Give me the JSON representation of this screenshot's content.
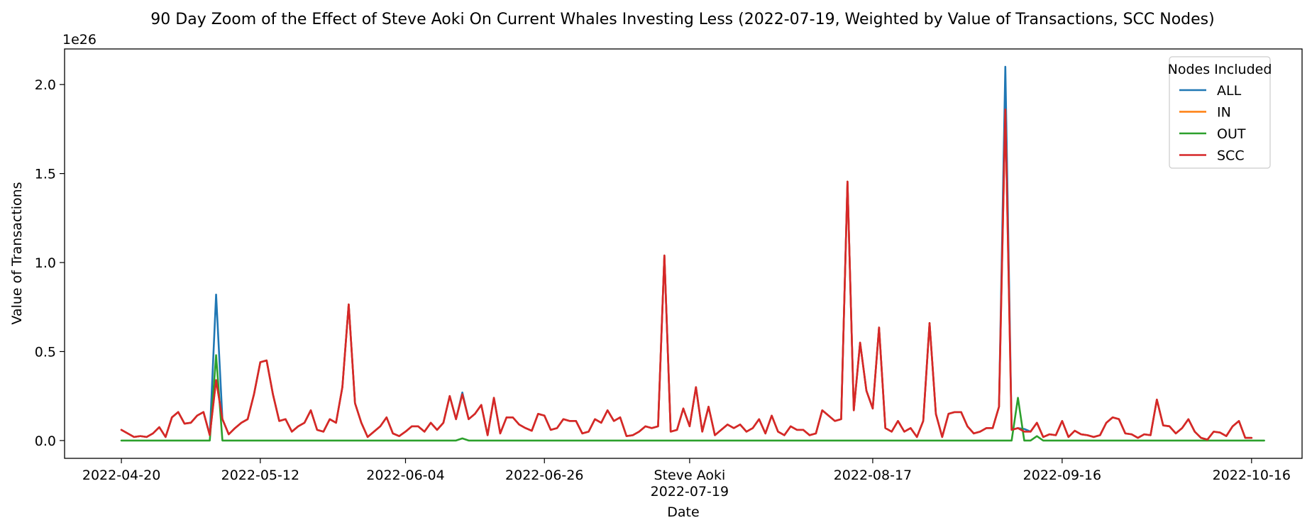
{
  "chart_data": {
    "type": "line",
    "title": "90 Day Zoom of the Effect of Steve Aoki On Current Whales Investing Less (2022-07-19, Weighted by Value of Transactions, SCC Nodes)",
    "xlabel": "Date",
    "ylabel": "Value of Transactions",
    "y_offset_label": "1e26",
    "x_start": "2022-04-20",
    "x_end": "2022-10-16",
    "xlim": [
      "2022-04-11",
      "2022-10-24"
    ],
    "ylim": [
      -0.1,
      2.2
    ],
    "x_ticks": [
      {
        "date": "2022-04-20",
        "label": "2022-04-20"
      },
      {
        "date": "2022-05-12",
        "label": "2022-05-12"
      },
      {
        "date": "2022-06-04",
        "label": "2022-06-04"
      },
      {
        "date": "2022-06-26",
        "label": "2022-06-26"
      },
      {
        "date": "2022-07-19",
        "label": "Steve Aoki",
        "label2": "2022-07-19"
      },
      {
        "date": "2022-08-17",
        "label": "2022-08-17"
      },
      {
        "date": "2022-09-16",
        "label": "2022-09-16"
      },
      {
        "date": "2022-10-16",
        "label": "2022-10-16"
      }
    ],
    "y_ticks": [
      {
        "value": 0.0,
        "label": "0.0"
      },
      {
        "value": 0.5,
        "label": "0.5"
      },
      {
        "value": 1.0,
        "label": "1.0"
      },
      {
        "value": 1.5,
        "label": "1.5"
      },
      {
        "value": 2.0,
        "label": "2.0"
      }
    ],
    "legend": {
      "title": "Nodes Included",
      "placement": "top-right"
    },
    "grid": false,
    "series": [
      {
        "name": "ALL",
        "color": "#1f77b4",
        "values": [
          0.06,
          0.04,
          0.02,
          0.025,
          0.02,
          0.04,
          0.075,
          0.02,
          0.13,
          0.16,
          0.095,
          0.1,
          0.14,
          0.16,
          0.03,
          0.82,
          0.12,
          0.035,
          0.07,
          0.1,
          0.12,
          0.26,
          0.44,
          0.45,
          0.26,
          0.11,
          0.12,
          0.05,
          0.08,
          0.1,
          0.17,
          0.06,
          0.05,
          0.12,
          0.1,
          0.3,
          0.765,
          0.21,
          0.1,
          0.02,
          0.05,
          0.08,
          0.13,
          0.04,
          0.025,
          0.05,
          0.08,
          0.08,
          0.05,
          0.1,
          0.06,
          0.1,
          0.25,
          0.12,
          0.27,
          0.12,
          0.15,
          0.2,
          0.03,
          0.24,
          0.04,
          0.13,
          0.13,
          0.09,
          0.07,
          0.055,
          0.15,
          0.14,
          0.06,
          0.07,
          0.12,
          0.11,
          0.11,
          0.04,
          0.05,
          0.12,
          0.1,
          0.17,
          0.11,
          0.13,
          0.025,
          0.03,
          0.05,
          0.08,
          0.07,
          0.08,
          1.04,
          0.05,
          0.06,
          0.18,
          0.08,
          0.3,
          0.05,
          0.19,
          0.03,
          0.06,
          0.09,
          0.07,
          0.09,
          0.05,
          0.07,
          0.12,
          0.04,
          0.14,
          0.05,
          0.03,
          0.08,
          0.06,
          0.06,
          0.03,
          0.04,
          0.17,
          0.14,
          0.11,
          0.12,
          1.455,
          0.17,
          0.55,
          0.28,
          0.18,
          0.635,
          0.07,
          0.05,
          0.11,
          0.05,
          0.07,
          0.02,
          0.11,
          0.66,
          0.15,
          0.02,
          0.15,
          0.16,
          0.16,
          0.08,
          0.04,
          0.05,
          0.07,
          0.07,
          0.19,
          2.1,
          0.06,
          0.07,
          0.065,
          0.05,
          0.1,
          0.02,
          0.035,
          0.03,
          0.11,
          0.02,
          0.055,
          0.035,
          0.03,
          0.02,
          0.03,
          0.1,
          0.13,
          0.12,
          0.04,
          0.035,
          0.015,
          0.035,
          0.03,
          0.23,
          0.085,
          0.08,
          0.04,
          0.07,
          0.12,
          0.05,
          0.015,
          0.005,
          0.05,
          0.045,
          0.025,
          0.08,
          0.11,
          0.015,
          0.015
        ]
      },
      {
        "name": "IN",
        "color": "#ff7f0e",
        "values": [
          0.06,
          0.04,
          0.02,
          0.025,
          0.02,
          0.04,
          0.075,
          0.02,
          0.13,
          0.16,
          0.095,
          0.1,
          0.14,
          0.16,
          0.03,
          0.34,
          0.12,
          0.035,
          0.07,
          0.1,
          0.12,
          0.26,
          0.44,
          0.45,
          0.26,
          0.11,
          0.12,
          0.05,
          0.08,
          0.1,
          0.17,
          0.06,
          0.05,
          0.12,
          0.1,
          0.3,
          0.765,
          0.21,
          0.1,
          0.02,
          0.05,
          0.08,
          0.13,
          0.04,
          0.025,
          0.05,
          0.08,
          0.08,
          0.05,
          0.1,
          0.06,
          0.1,
          0.25,
          0.12,
          0.26,
          0.12,
          0.15,
          0.2,
          0.03,
          0.24,
          0.04,
          0.13,
          0.13,
          0.09,
          0.07,
          0.055,
          0.15,
          0.14,
          0.06,
          0.07,
          0.12,
          0.11,
          0.11,
          0.04,
          0.05,
          0.12,
          0.1,
          0.17,
          0.11,
          0.13,
          0.025,
          0.03,
          0.05,
          0.08,
          0.07,
          0.08,
          1.04,
          0.05,
          0.06,
          0.18,
          0.08,
          0.3,
          0.05,
          0.19,
          0.03,
          0.06,
          0.09,
          0.07,
          0.09,
          0.05,
          0.07,
          0.12,
          0.04,
          0.14,
          0.05,
          0.03,
          0.08,
          0.06,
          0.06,
          0.03,
          0.04,
          0.17,
          0.14,
          0.11,
          0.12,
          1.455,
          0.17,
          0.55,
          0.28,
          0.18,
          0.635,
          0.07,
          0.05,
          0.11,
          0.05,
          0.07,
          0.02,
          0.11,
          0.66,
          0.15,
          0.02,
          0.15,
          0.16,
          0.16,
          0.08,
          0.04,
          0.05,
          0.07,
          0.07,
          0.19,
          1.86,
          0.06,
          0.07,
          0.05,
          0.05,
          0.1,
          0.02,
          0.035,
          0.03,
          0.11,
          0.02,
          0.055,
          0.035,
          0.03,
          0.02,
          0.03,
          0.1,
          0.13,
          0.12,
          0.04,
          0.035,
          0.015,
          0.035,
          0.03,
          0.23,
          0.085,
          0.08,
          0.04,
          0.07,
          0.12,
          0.05,
          0.015,
          0.005,
          0.05,
          0.045,
          0.025,
          0.08,
          0.11,
          0.015,
          0.015
        ]
      },
      {
        "name": "OUT",
        "color": "#2ca02c",
        "values": [
          0,
          0,
          0,
          0,
          0,
          0,
          0,
          0,
          0,
          0,
          0,
          0,
          0,
          0,
          0,
          0.48,
          0,
          0,
          0,
          0,
          0,
          0,
          0,
          0,
          0,
          0,
          0,
          0,
          0,
          0,
          0,
          0,
          0,
          0,
          0,
          0,
          0,
          0,
          0,
          0,
          0,
          0,
          0,
          0,
          0,
          0,
          0,
          0,
          0,
          0,
          0,
          0,
          0,
          0,
          0.012,
          0,
          0,
          0,
          0,
          0,
          0,
          0,
          0,
          0,
          0,
          0,
          0,
          0,
          0,
          0,
          0,
          0,
          0,
          0,
          0,
          0,
          0,
          0,
          0,
          0,
          0,
          0,
          0,
          0,
          0,
          0,
          0,
          0,
          0,
          0,
          0,
          0,
          0,
          0,
          0,
          0,
          0,
          0,
          0,
          0,
          0,
          0,
          0,
          0,
          0,
          0,
          0,
          0,
          0,
          0,
          0,
          0,
          0,
          0,
          0,
          0,
          0,
          0,
          0,
          0,
          0,
          0,
          0,
          0,
          0,
          0,
          0,
          0,
          0,
          0,
          0,
          0,
          0,
          0,
          0,
          0,
          0,
          0,
          0,
          0,
          0,
          0,
          0.24,
          0,
          0,
          0.025,
          0,
          0,
          0,
          0,
          0,
          0,
          0,
          0,
          0,
          0,
          0,
          0,
          0,
          0,
          0,
          0,
          0,
          0,
          0,
          0,
          0,
          0,
          0,
          0,
          0,
          0,
          0,
          0,
          0,
          0,
          0,
          0,
          0,
          0,
          0,
          0
        ]
      },
      {
        "name": "SCC",
        "color": "#d62728",
        "values": [
          0.06,
          0.04,
          0.02,
          0.025,
          0.02,
          0.04,
          0.075,
          0.02,
          0.13,
          0.16,
          0.095,
          0.1,
          0.14,
          0.16,
          0.03,
          0.34,
          0.12,
          0.035,
          0.07,
          0.1,
          0.12,
          0.26,
          0.44,
          0.45,
          0.26,
          0.11,
          0.12,
          0.05,
          0.08,
          0.1,
          0.17,
          0.06,
          0.05,
          0.12,
          0.1,
          0.3,
          0.765,
          0.21,
          0.1,
          0.02,
          0.05,
          0.08,
          0.13,
          0.04,
          0.025,
          0.05,
          0.08,
          0.08,
          0.05,
          0.1,
          0.06,
          0.1,
          0.25,
          0.12,
          0.26,
          0.12,
          0.15,
          0.2,
          0.03,
          0.24,
          0.04,
          0.13,
          0.13,
          0.09,
          0.07,
          0.055,
          0.15,
          0.14,
          0.06,
          0.07,
          0.12,
          0.11,
          0.11,
          0.04,
          0.05,
          0.12,
          0.1,
          0.17,
          0.11,
          0.13,
          0.025,
          0.03,
          0.05,
          0.08,
          0.07,
          0.08,
          1.04,
          0.05,
          0.06,
          0.18,
          0.08,
          0.3,
          0.05,
          0.19,
          0.03,
          0.06,
          0.09,
          0.07,
          0.09,
          0.05,
          0.07,
          0.12,
          0.04,
          0.14,
          0.05,
          0.03,
          0.08,
          0.06,
          0.06,
          0.03,
          0.04,
          0.17,
          0.14,
          0.11,
          0.12,
          1.455,
          0.17,
          0.55,
          0.28,
          0.18,
          0.635,
          0.07,
          0.05,
          0.11,
          0.05,
          0.07,
          0.02,
          0.11,
          0.66,
          0.15,
          0.02,
          0.15,
          0.16,
          0.16,
          0.08,
          0.04,
          0.05,
          0.07,
          0.07,
          0.19,
          1.86,
          0.06,
          0.07,
          0.05,
          0.05,
          0.1,
          0.02,
          0.035,
          0.03,
          0.11,
          0.02,
          0.055,
          0.035,
          0.03,
          0.02,
          0.03,
          0.1,
          0.13,
          0.12,
          0.04,
          0.035,
          0.015,
          0.035,
          0.03,
          0.23,
          0.085,
          0.08,
          0.04,
          0.07,
          0.12,
          0.05,
          0.015,
          0.005,
          0.05,
          0.045,
          0.025,
          0.08,
          0.11,
          0.015,
          0.015
        ]
      }
    ]
  }
}
